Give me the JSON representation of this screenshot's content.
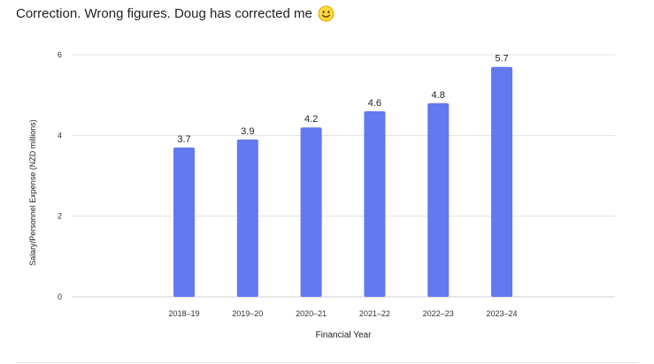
{
  "post": {
    "text": "Correction. Wrong figures. Doug has corrected me",
    "emoji_icon": "slightly-smiling-face-icon"
  },
  "chart_data": {
    "type": "bar",
    "categories": [
      "2018–19",
      "2019–20",
      "2020–21",
      "2021–22",
      "2022–23",
      "2023–24"
    ],
    "values": [
      3.7,
      3.9,
      4.2,
      4.6,
      4.8,
      5.7
    ],
    "data_labels": [
      "3.7",
      "3.9",
      "4.2",
      "4.6",
      "4.8",
      "5.7"
    ],
    "xlabel": "Financial Year",
    "ylabel": "Salary/Personnel Expense (NZD millions)",
    "ylim": [
      0,
      6
    ],
    "yticks": [
      0,
      2,
      4,
      6
    ],
    "ytick_labels": [
      "0",
      "2",
      "4",
      "6"
    ],
    "grid": true,
    "legend": "none",
    "bar_color": "#6279f0"
  }
}
